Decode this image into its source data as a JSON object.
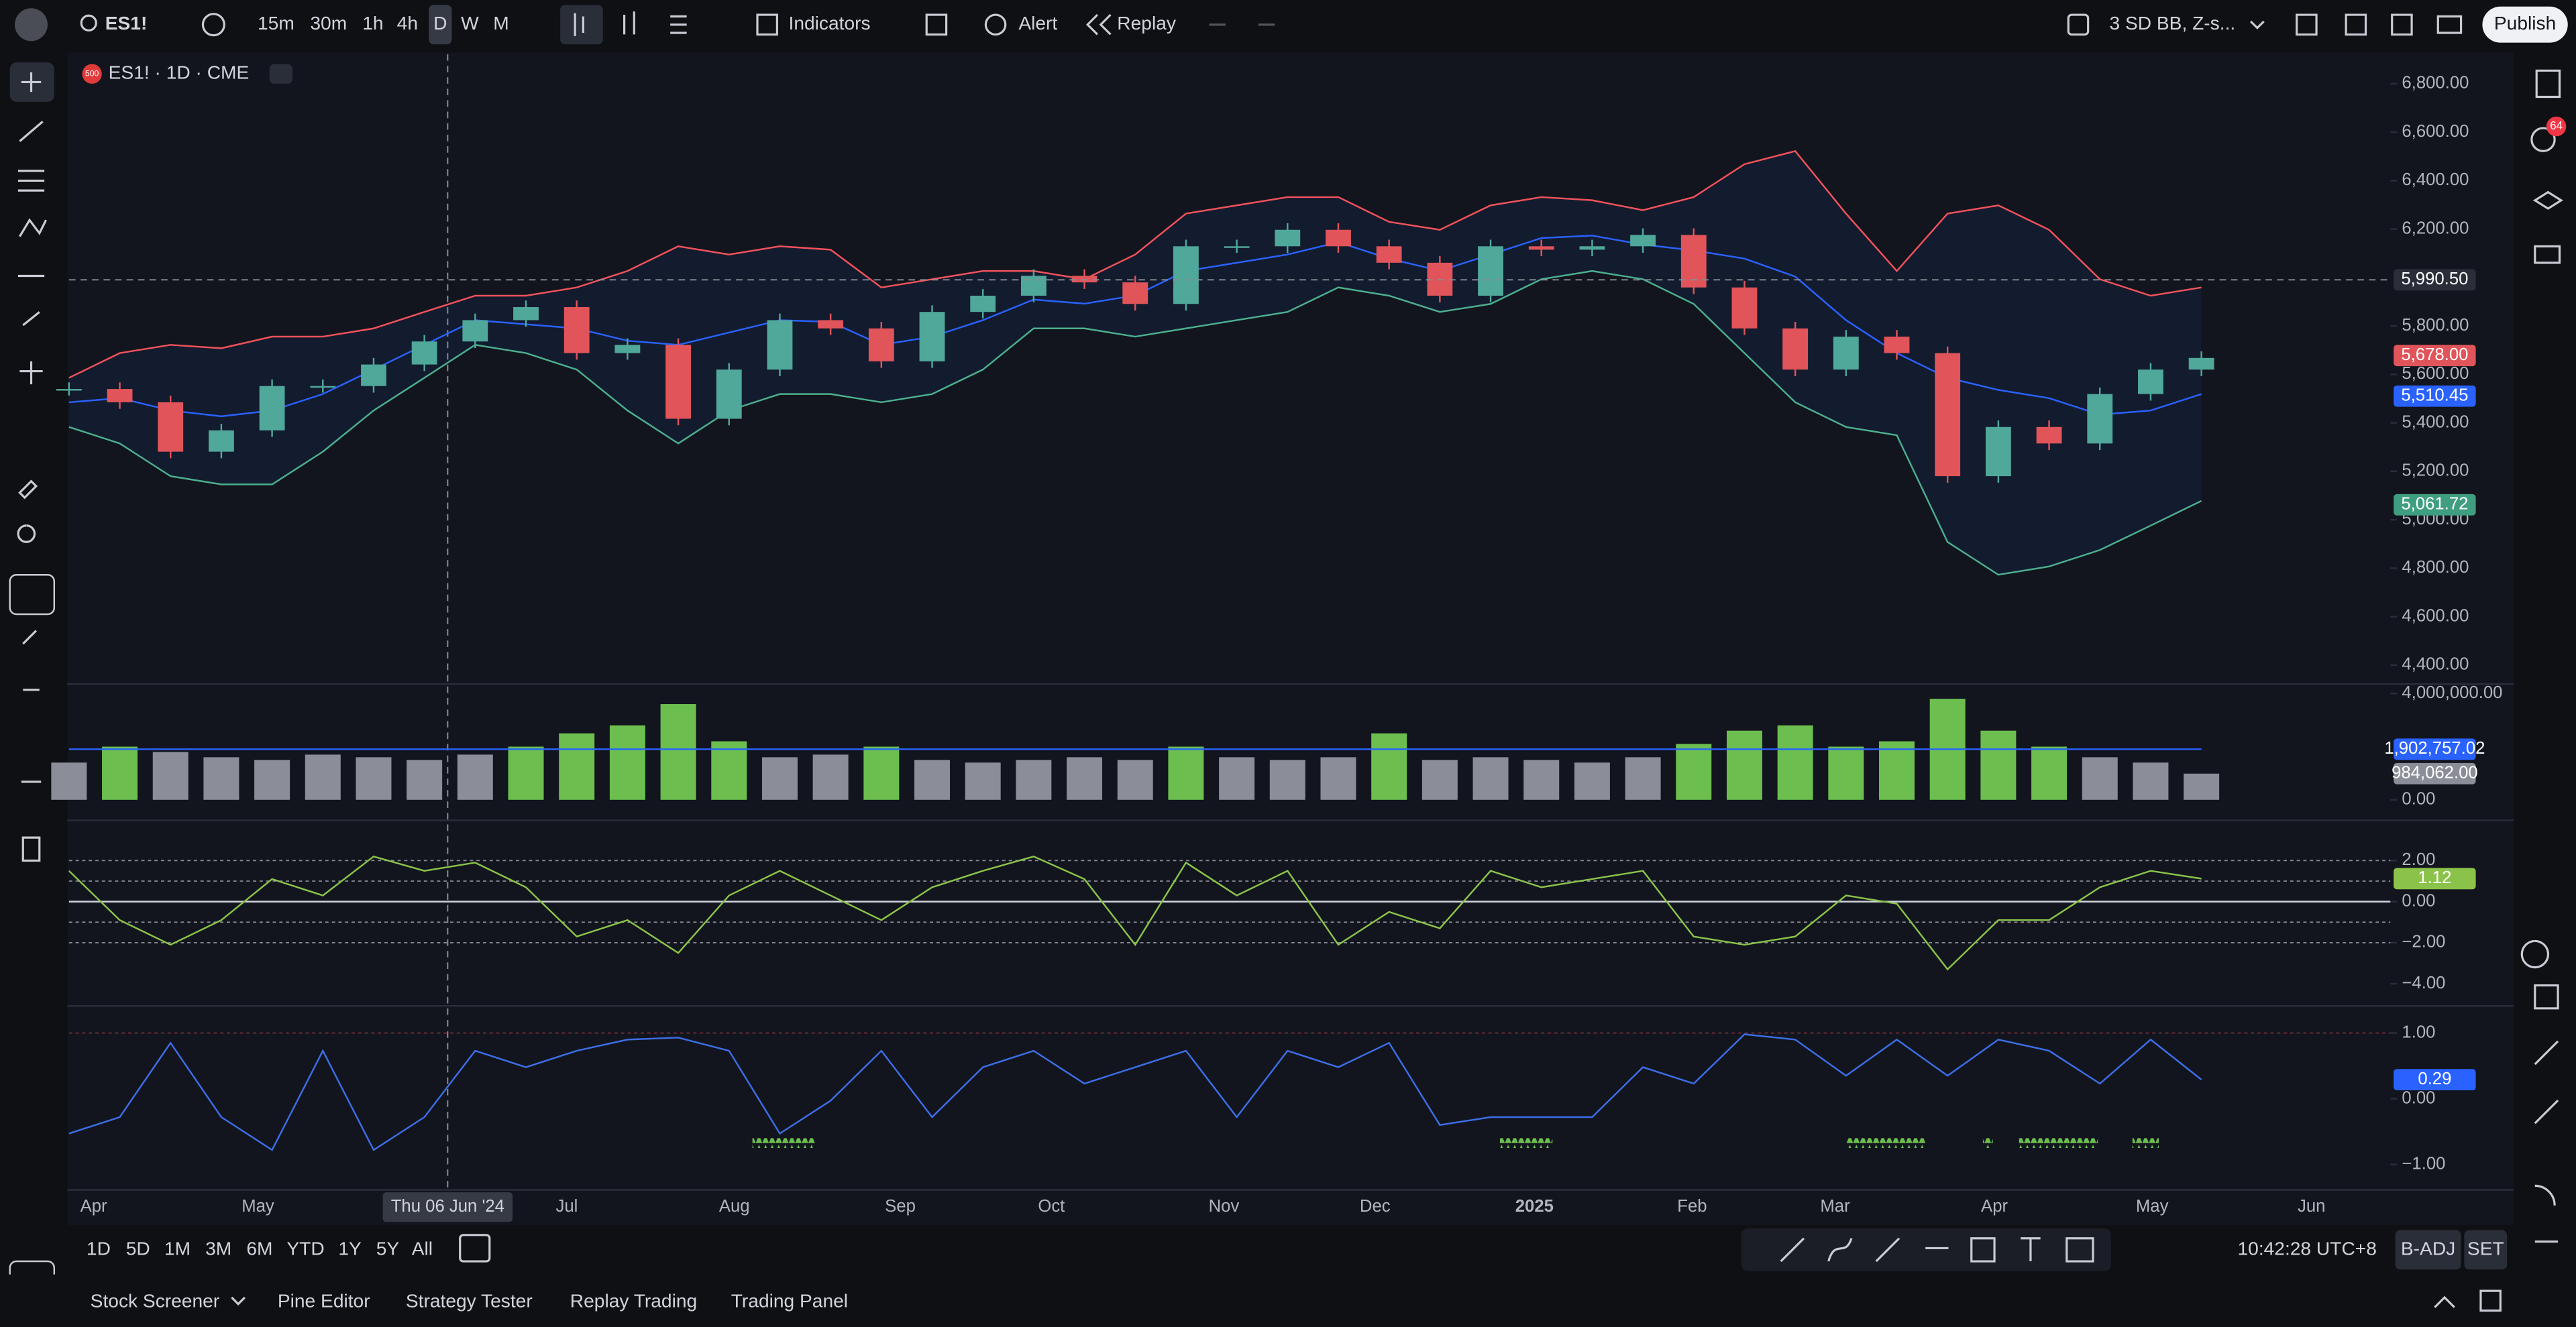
{
  "toolbar": {
    "symbol": "ES1!",
    "intervals": [
      "15m",
      "30m",
      "1h",
      "4h",
      "D",
      "W",
      "M"
    ],
    "indicators": "Indicators",
    "alert": "Alert",
    "replay": "Replay",
    "layout": "3 SD BB, Z-s...",
    "publish": "Publish",
    "badge": "64"
  },
  "legend": {
    "icon": "500",
    "title": "ES1! · 1D · CME"
  },
  "chart_data": [
    {
      "type": "candlestick",
      "ylim": [
        4332,
        6922
      ],
      "up_color": "#4fa89a",
      "down_color": "#e0545a",
      "values": [
        5540,
        5485,
        5281,
        5369,
        5552,
        5552,
        5641,
        5736,
        5824,
        5878,
        5688,
        5722,
        5417,
        5620,
        5824,
        5790,
        5654,
        5858,
        5925,
        6007,
        5980,
        5891,
        6129,
        6129,
        6197,
        6129,
        6061,
        5925,
        6129,
        6115,
        6129,
        6176,
        5959,
        5790,
        5620,
        5756,
        5688,
        5180,
        5383,
        5315,
        5519,
        5620,
        5668
      ],
      "series": [
        {
          "color": "#f2525b",
          "values": [
            5586,
            5688,
            5722,
            5708,
            5756,
            5756,
            5790,
            5858,
            5925,
            5925,
            5959,
            6027,
            6129,
            6095,
            6129,
            6115,
            5959,
            5993,
            6027,
            6027,
            5993,
            6095,
            6264,
            6298,
            6332,
            6332,
            6230,
            6197,
            6298,
            6332,
            6319,
            6278,
            6332,
            6468,
            6522,
            6264,
            6027,
            6264,
            6298,
            6197,
            5993,
            5925,
            5959
          ]
        },
        {
          "color": "#2962ff",
          "values": [
            5485,
            5502,
            5451,
            5427,
            5451,
            5519,
            5620,
            5722,
            5824,
            5807,
            5790,
            5739,
            5722,
            5773,
            5824,
            5817,
            5722,
            5756,
            5824,
            5909,
            5892,
            5926,
            6027,
            6061,
            6095,
            6146,
            6078,
            6028,
            6095,
            6163,
            6173,
            6136,
            6112,
            6078,
            6004,
            5824,
            5688,
            5586,
            5536,
            5502,
            5434,
            5451,
            5519
          ]
        },
        {
          "color": "#4caf8f",
          "values": [
            5383,
            5315,
            5180,
            5146,
            5146,
            5281,
            5451,
            5586,
            5722,
            5688,
            5620,
            5451,
            5315,
            5451,
            5519,
            5519,
            5485,
            5519,
            5620,
            5790,
            5790,
            5756,
            5790,
            5824,
            5858,
            5959,
            5925,
            5858,
            5891,
            5993,
            6027,
            5993,
            5891,
            5688,
            5485,
            5383,
            5349,
            4908,
            4773,
            4807,
            4875,
            4976,
            5078
          ]
        }
      ],
      "yticks": [
        {
          "value": 6800,
          "label": "6,800.00"
        },
        {
          "value": 6600,
          "label": "6,600.00"
        },
        {
          "value": 6400,
          "label": "6,400.00"
        },
        {
          "value": 6200,
          "label": "6,200.00"
        },
        {
          "value": 5800,
          "label": "5,800.00"
        },
        {
          "value": 5600,
          "label": "5,600.00"
        },
        {
          "value": 5400,
          "label": "5,400.00"
        },
        {
          "value": 5200,
          "label": "5,200.00"
        },
        {
          "value": 5000,
          "label": "5,000.00"
        },
        {
          "value": 4800,
          "label": "4,800.00"
        },
        {
          "value": 4600,
          "label": "4,600.00"
        },
        {
          "value": 4400,
          "label": "4,400.00"
        }
      ],
      "price_labels": [
        {
          "value": 5990.5,
          "label": "5,990.50",
          "color": "#2a2e39"
        },
        {
          "value": 5678,
          "label": "5,678.00",
          "color": "#e0545a"
        },
        {
          "value": 5510.45,
          "label": "5,510.45",
          "color": "#2962ff"
        },
        {
          "value": 5061.72,
          "label": "5,061.72",
          "color": "#3f9d80"
        }
      ]
    },
    {
      "type": "bar",
      "ylim": [
        0,
        4200000
      ],
      "up_color": "#6cbf4f",
      "down_color": "#8b8e98",
      "values": [
        1400000,
        2000000,
        1800000,
        1600000,
        1500000,
        1700000,
        1600000,
        1500000,
        1700000,
        2000000,
        2500000,
        2800000,
        3600000,
        2200000,
        1600000,
        1700000,
        2000000,
        1500000,
        1400000,
        1500000,
        1600000,
        1500000,
        2000000,
        1600000,
        1500000,
        1600000,
        2500000,
        1500000,
        1600000,
        1500000,
        1400000,
        1600000,
        2100000,
        2600000,
        2800000,
        2000000,
        2200000,
        3800000,
        2600000,
        2000000,
        1600000,
        1400000,
        984062
      ],
      "yticks": [
        {
          "value": 4000000,
          "label": "4,000,000.00"
        },
        {
          "value": 0,
          "label": "0.00"
        }
      ],
      "ma": {
        "value": 1902757.02,
        "label": "1,902,757.02",
        "color": "#2962ff"
      },
      "last": {
        "value": 984062,
        "label": "984,062.00",
        "color": "#8b8e98"
      }
    },
    {
      "type": "line",
      "ylim": [
        -4.88,
        3.76
      ],
      "color": "#8bc34a",
      "values": [
        1.5,
        -0.9,
        -2.1,
        -0.9,
        1.1,
        0.3,
        2.2,
        1.5,
        1.9,
        0.7,
        -1.7,
        -0.9,
        -2.5,
        0.3,
        1.5,
        0.3,
        -0.9,
        0.7,
        1.5,
        2.2,
        1.1,
        -2.1,
        1.9,
        0.3,
        1.5,
        -2.1,
        -0.5,
        -1.3,
        1.5,
        0.7,
        1.1,
        1.5,
        -1.7,
        -2.1,
        -1.7,
        0.3,
        -0.1,
        -3.3,
        -0.9,
        -0.9,
        0.7,
        1.5,
        1.12
      ],
      "levels": [
        2,
        1,
        0,
        -1,
        -2
      ],
      "yticks": [
        {
          "value": 2,
          "label": "2.00"
        },
        {
          "value": 0,
          "label": "0.00"
        },
        {
          "value": -2,
          "label": "−2.00"
        },
        {
          "value": -4,
          "label": "−4.00"
        }
      ],
      "last": {
        "value": 1.12,
        "label": "1.12",
        "color": "#8bc34a"
      }
    },
    {
      "type": "line",
      "ylim": [
        -1.325,
        1.375
      ],
      "color": "#3d6ee8",
      "values": [
        -0.53,
        -0.28,
        0.85,
        -0.28,
        -0.78,
        0.73,
        -0.78,
        -0.28,
        0.73,
        0.48,
        0.73,
        0.9,
        0.93,
        0.73,
        -0.53,
        -0.03,
        0.73,
        -0.28,
        0.48,
        0.73,
        0.23,
        0.48,
        0.73,
        -0.28,
        0.73,
        0.48,
        0.85,
        -0.4,
        -0.28,
        -0.28,
        -0.28,
        0.48,
        0.23,
        0.98,
        0.9,
        0.35,
        0.9,
        0.35,
        0.9,
        0.73,
        0.23,
        0.9,
        0.29
      ],
      "levels": [
        1
      ],
      "yticks": [
        {
          "value": 1,
          "label": "1.00"
        },
        {
          "value": 0,
          "label": "0.00"
        },
        {
          "value": -1,
          "label": "−1.00"
        }
      ],
      "last": {
        "value": 0.29,
        "label": "0.29",
        "color": "#2962ff"
      }
    }
  ],
  "time_axis": {
    "labels": [
      "Apr",
      "May",
      "Jul",
      "Aug",
      "Sep",
      "Oct",
      "Nov",
      "Dec",
      "2025",
      "Feb",
      "Mar",
      "Apr",
      "May",
      "Jun"
    ],
    "crosshair": "Thu 06 Jun '24"
  },
  "bottom_bar": {
    "ranges": [
      "1D",
      "5D",
      "1M",
      "3M",
      "6M",
      "YTD",
      "1Y",
      "5Y",
      "All"
    ],
    "clock": "10:42:28 UTC+8",
    "adj": "B-ADJ",
    "session": "SET"
  },
  "tabs": [
    "Stock Screener",
    "Pine Editor",
    "Strategy Tester",
    "Replay Trading",
    "Trading Panel"
  ]
}
